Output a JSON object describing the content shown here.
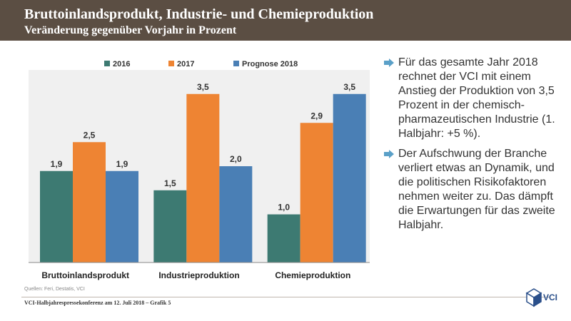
{
  "header": {
    "title": "Bruttoinlandsprodukt, Industrie- und Chemieproduktion",
    "subtitle": "Veränderung gegenüber Vorjahr in Prozent"
  },
  "chart_data": {
    "type": "bar",
    "categories": [
      "Bruttoinlandsprodukt",
      "Industrieproduktion",
      "Chemieproduktion"
    ],
    "series": [
      {
        "name": "2016",
        "values": [
          1.9,
          1.5,
          1.0
        ],
        "labels": [
          "1,9",
          "1,5",
          "1,0"
        ],
        "color": "#3d7a72"
      },
      {
        "name": "2017",
        "values": [
          2.5,
          3.5,
          2.9
        ],
        "labels": [
          "2,5",
          "3,5",
          "2,9"
        ],
        "color": "#ee8433"
      },
      {
        "name": "Prognose 2018",
        "values": [
          1.9,
          2.0,
          3.5
        ],
        "labels": [
          "1,9",
          "2,0",
          "3,5"
        ],
        "color": "#4a7fb5"
      }
    ],
    "ylim": [
      0,
      4
    ],
    "legend": "top",
    "grid": false
  },
  "bullets": [
    "Für das gesamte Jahr 2018 rechnet der VCI mit einem Anstieg der Produktion von 3,5 Prozent in der chemisch-pharmazeutischen Industrie (1. Halbjahr: +5 %).",
    "Der Aufschwung  der Branche verliert etwas an Dynamik, und die politischen Risikofaktoren nehmen weiter zu. Das dämpft die Erwartungen für das zweite Halbjahr."
  ],
  "sources": "Quellen: Feri, Destatis, VCI",
  "footer": "VCI-Halbjahrespressekonferenz am 12. Juli 2018 – Grafik 5",
  "logo_text": "VCI",
  "colors": {
    "header_bg": "#5b4e43",
    "bullet": "#5aa0c8"
  }
}
